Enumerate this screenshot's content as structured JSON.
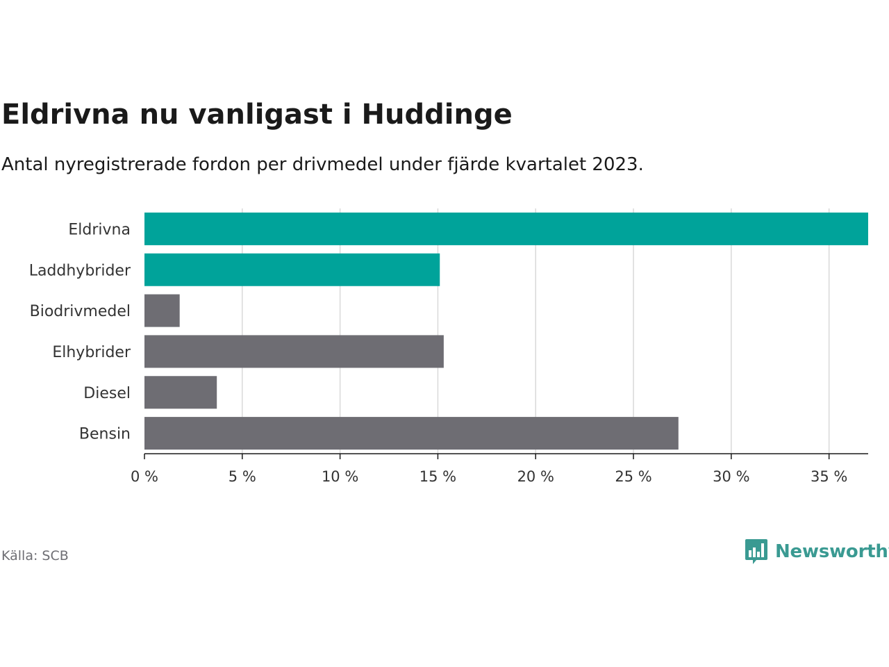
{
  "chart_data": {
    "type": "bar",
    "orientation": "horizontal",
    "title": "Eldrivna nu vanligast i Huddinge",
    "subtitle": "Antal nyregistrerade fordon per drivmedel under fjärde kvartalet 2023.",
    "categories": [
      "Eldrivna",
      "Laddhybrider",
      "Biodrivmedel",
      "Elhybrider",
      "Diesel",
      "Bensin"
    ],
    "values": [
      37.0,
      15.1,
      1.8,
      15.3,
      3.7,
      27.3
    ],
    "bar_colors": [
      "#00a39a",
      "#00a39a",
      "#6e6d73",
      "#6e6d73",
      "#6e6d73",
      "#6e6d73"
    ],
    "xlim": [
      0,
      37
    ],
    "xticks": [
      0,
      5,
      10,
      15,
      20,
      25,
      30,
      35
    ],
    "xtick_labels": [
      "0 %",
      "5 %",
      "10 %",
      "15 %",
      "20 %",
      "25 %",
      "30 %",
      "35 %"
    ],
    "xlabel": "",
    "ylabel": "",
    "grid": true
  },
  "footer": {
    "source": "Källa: SCB",
    "brand": "Newsworthy",
    "brand_color": "#3a9a92"
  }
}
